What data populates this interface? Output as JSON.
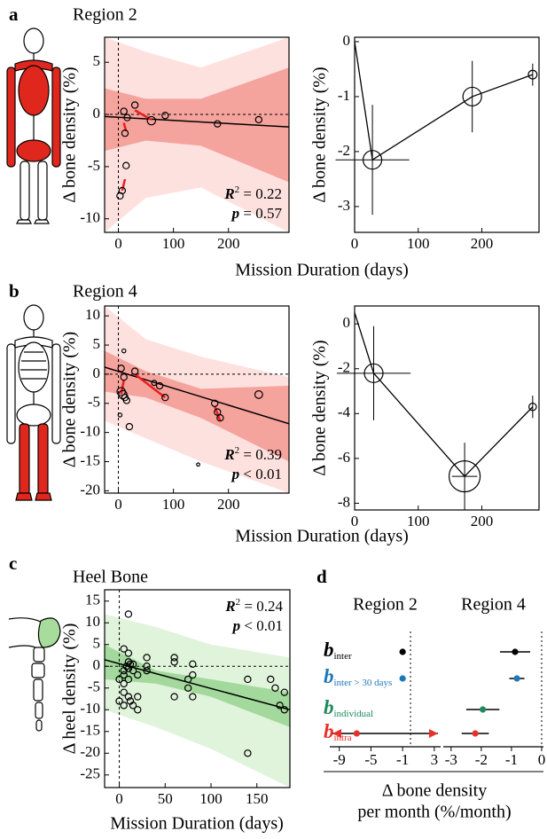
{
  "chart_data": [
    {
      "type": "scatter",
      "panel": "a",
      "title": "Region 2",
      "xlabel": "Mission Duration (days)",
      "ylabel": "Δ bone density (%)",
      "xlim": [
        -25,
        310
      ],
      "xticks": [
        0,
        100,
        200
      ],
      "ylim": [
        -11.3,
        7.4
      ],
      "yticks": [
        -10,
        -5,
        0,
        5
      ],
      "x": [
        3,
        7,
        10,
        12,
        14,
        16,
        30,
        60,
        85,
        180,
        255
      ],
      "values": [
        -7.8,
        -7.3,
        0.3,
        -1.8,
        -4.9,
        -0.3,
        0.9,
        -0.6,
        -0.1,
        -0.9,
        -0.5
      ],
      "sizes": [
        1,
        1,
        1,
        1,
        1,
        1,
        1,
        1.3,
        1,
        1,
        1
      ],
      "point_color": "#000000",
      "bands": [
        {
          "color": "#fde1df",
          "x": [
            -25,
            50,
            150,
            310
          ],
          "upper": [
            7.4,
            6,
            4.5,
            7.4
          ],
          "lower": [
            -11.3,
            -8,
            -7,
            -11.3
          ]
        },
        {
          "color": "#f5a39d",
          "x": [
            -25,
            50,
            150,
            310
          ],
          "upper": [
            2.5,
            1.5,
            1.5,
            4.5
          ],
          "lower": [
            -3.5,
            -2.5,
            -3,
            -6.5
          ]
        }
      ],
      "fit": {
        "x": [
          -25,
          310
        ],
        "values": [
          -0.2,
          -1.2
        ],
        "color": "#000000"
      },
      "segments": [
        {
          "x": [
            7,
            12
          ],
          "values": [
            -7.3,
            -6.2
          ]
        },
        {
          "x": [
            10,
            14
          ],
          "values": [
            -0.8,
            -1.6
          ]
        },
        {
          "x": [
            30,
            60
          ],
          "values": [
            0.4,
            -0.5
          ]
        }
      ],
      "segment_color": "#ee1c1c",
      "stats": [
        {
          "symbol": "R",
          "sup": "2",
          "text": " = 0.22"
        },
        {
          "symbol": "p",
          "text": " = 0.57"
        }
      ],
      "stats_corner": "lower right"
    },
    {
      "type": "line",
      "ylabel": "Δ bone density (%)",
      "xlim": [
        0,
        290
      ],
      "xticks": [
        0,
        100,
        200
      ],
      "ylim": [
        -3.47,
        0.08
      ],
      "yticks": [
        -3,
        -2,
        -1,
        0
      ],
      "x": [
        0,
        28,
        185,
        280
      ],
      "values": [
        0,
        -2.15,
        -1,
        -0.6
      ],
      "x_err": [
        null,
        58,
        null,
        null
      ],
      "y_err": [
        null,
        1,
        0.65,
        0.2
      ],
      "sizes": [
        null,
        1.5,
        1.5,
        0.7
      ],
      "color": "#000000"
    },
    {
      "type": "scatter",
      "panel": "b",
      "title": "Region 4",
      "xlabel": "Mission Duration (days)",
      "ylabel": "Δ bone density (%)",
      "xlim": [
        -25,
        310
      ],
      "xticks": [
        0,
        100,
        200
      ],
      "ylim": [
        -20.4,
        11.7
      ],
      "yticks": [
        -20,
        -15,
        -10,
        -5,
        0,
        5,
        10
      ],
      "x": [
        10,
        5,
        10,
        5,
        8,
        12,
        15,
        20,
        30,
        65,
        75,
        85,
        175,
        180,
        185,
        255,
        145,
        3
      ],
      "values": [
        4,
        1,
        -0.5,
        -3,
        -3.5,
        -4,
        -4.5,
        -9,
        0.5,
        -1.5,
        -2,
        -4,
        -5,
        -6.5,
        -7.5,
        -3.5,
        -15.5,
        -7
      ],
      "sizes": [
        0.6,
        1,
        1,
        1.3,
        1.3,
        1,
        1,
        1,
        1,
        0.8,
        1,
        1,
        1,
        1,
        1,
        1.2,
        0.5,
        0.6
      ],
      "point_color": "#000000",
      "bands": [
        {
          "color": "#fde1df",
          "x": [
            -25,
            50,
            150,
            310
          ],
          "upper": [
            11.7,
            6,
            3,
            -0.5
          ],
          "lower": [
            -8,
            -11,
            -15,
            -20.4
          ]
        },
        {
          "color": "#f5a39d",
          "x": [
            -25,
            50,
            150,
            310
          ],
          "upper": [
            4,
            0.5,
            -2.5,
            -2
          ],
          "lower": [
            -3,
            -4,
            -7.5,
            -15
          ]
        }
      ],
      "fit": {
        "x": [
          -25,
          310
        ],
        "values": [
          1.2,
          -8.5
        ],
        "color": "#000000"
      },
      "segments": [
        {
          "x": [
            5,
            10
          ],
          "values": [
            -3.5,
            -1
          ]
        },
        {
          "x": [
            30,
            85
          ],
          "values": [
            0,
            -4
          ]
        },
        {
          "x": [
            175,
            185
          ],
          "values": [
            -5.5,
            -8
          ]
        }
      ],
      "segment_color": "#ee1c1c",
      "stats": [
        {
          "symbol": "R",
          "sup": "2",
          "text": " = 0.39"
        },
        {
          "symbol": "p",
          "text": " < 0.01"
        }
      ],
      "stats_corner": "lower right"
    },
    {
      "type": "line",
      "ylabel": "Δ bone density (%)",
      "xlim": [
        0,
        290
      ],
      "xticks": [
        0,
        100,
        200
      ],
      "ylim": [
        -8.3,
        0.8
      ],
      "yticks": [
        -8,
        -6,
        -4,
        -2,
        0
      ],
      "x": [
        0,
        30,
        173,
        280
      ],
      "values": [
        0.5,
        -2.2,
        -6.8,
        -3.7
      ],
      "x_err": [
        null,
        58,
        20,
        null
      ],
      "y_err": [
        null,
        2.1,
        1.5,
        0.5
      ],
      "sizes": [
        null,
        1.5,
        2.5,
        0.6
      ],
      "color": "#000000"
    },
    {
      "type": "scatter",
      "panel": "c",
      "title": "Heel Bone",
      "xlabel": "Mission Duration (days)",
      "ylabel": "Δ heel density (%)",
      "xlim": [
        -16,
        186
      ],
      "xticks": [
        0,
        50,
        100,
        150
      ],
      "ylim": [
        -27.9,
        17.6
      ],
      "yticks": [
        -25,
        -20,
        -15,
        -10,
        -5,
        0,
        5,
        10,
        15
      ],
      "x": [
        10,
        5,
        10,
        10,
        12,
        8,
        10,
        15,
        15,
        5,
        5,
        0,
        5,
        10,
        5,
        10,
        0,
        12,
        5,
        15,
        20,
        20,
        20,
        30,
        30,
        30,
        60,
        60,
        60,
        75,
        75,
        80,
        80,
        80,
        140,
        140,
        165,
        170,
        175,
        180,
        180
      ],
      "values": [
        12,
        4,
        3,
        1,
        0.5,
        0,
        -0.5,
        0.5,
        -1,
        -1,
        -2,
        -3,
        -4,
        -3,
        -6,
        -7,
        -8,
        -8,
        -9,
        -9,
        -7,
        -10,
        -2,
        -1,
        2,
        0,
        2,
        1,
        -7,
        -3,
        -5,
        0.5,
        -2,
        -7,
        -3,
        -20,
        -3,
        -5,
        -9,
        -10,
        -6
      ],
      "point_color": "#000000",
      "bands": [
        {
          "color": "#e0f3db",
          "x": [
            -16,
            40,
            100,
            186
          ],
          "upper": [
            12,
            9,
            5,
            2
          ],
          "lower": [
            -10,
            -14,
            -19,
            -27.9
          ]
        },
        {
          "color": "#a3d99c",
          "x": [
            -16,
            40,
            100,
            186
          ],
          "upper": [
            5,
            -1,
            -3,
            -6
          ],
          "lower": [
            -3,
            -4,
            -7,
            -14
          ]
        }
      ],
      "fit": {
        "x": [
          -16,
          186
        ],
        "values": [
          1.5,
          -10
        ],
        "color": "#000000"
      },
      "stats": [
        {
          "symbol": "R",
          "sup": "2",
          "text": " = 0.24"
        },
        {
          "symbol": "p",
          "text": " < 0.01"
        }
      ],
      "stats_corner": "upper right"
    },
    {
      "type": "forest",
      "panel": "d",
      "rows": [
        {
          "symbol": "b",
          "subscript": "inter",
          "color": "#000000"
        },
        {
          "symbol": "b",
          "subscript": "inter > 30 days",
          "color": "#1f77b4"
        },
        {
          "symbol": "b",
          "subscript": "individual",
          "color": "#1e8a5a"
        },
        {
          "symbol": "b",
          "subscript": "intra",
          "color": "#e8302a"
        }
      ],
      "subplots": [
        {
          "title": "Region 2",
          "xlim": [
            -10.2,
            3.8
          ],
          "xticks": [
            -9,
            -5,
            -1,
            3
          ],
          "values": [
            -1,
            -1,
            null,
            -6.8
          ],
          "errors": [
            0.25,
            0.1,
            null,
            12
          ]
        },
        {
          "title": "Region 4",
          "xlim": [
            -3.26,
            0.06
          ],
          "xticks": [
            -3,
            -2,
            -1,
            0
          ],
          "values": [
            -0.88,
            -0.82,
            -1.95,
            -2.2
          ],
          "errors": [
            0.5,
            0.25,
            0.55,
            0.45
          ]
        }
      ],
      "xlabel": [
        "Δ bone density",
        "per month (%/month)"
      ]
    }
  ]
}
